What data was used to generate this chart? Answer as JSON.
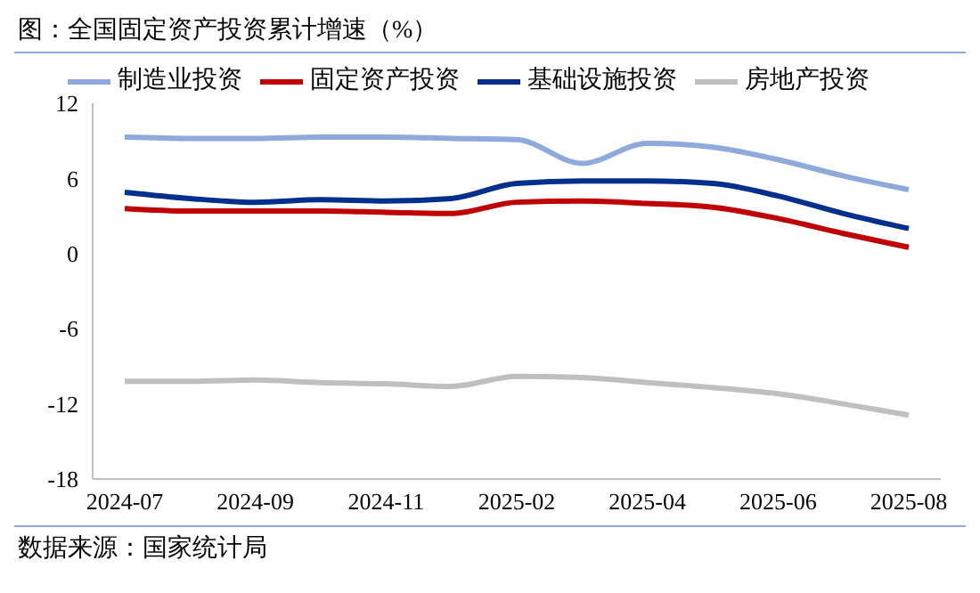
{
  "chart_data": {
    "type": "line",
    "title": "图：全国固定资产投资累计增速（%）",
    "annotations": [
      "数据来源：国家统计局"
    ],
    "categories": [
      "2024-07",
      null,
      "2024-09",
      null,
      "2024-11",
      null,
      "2025-02",
      null,
      "2025-04",
      null,
      "2025-06",
      null,
      "2025-08"
    ],
    "series": [
      {
        "name": "固定资产投资",
        "color": "#c00000",
        "values": [
          3.6,
          3.4,
          3.4,
          3.4,
          3.3,
          3.2,
          4.1,
          4.2,
          4.0,
          3.7,
          2.8,
          1.6,
          0.5
        ]
      },
      {
        "name": "基础设施投资",
        "color": "#002f8e",
        "values": [
          4.9,
          4.4,
          4.1,
          4.3,
          4.2,
          4.4,
          5.6,
          5.8,
          5.8,
          5.6,
          4.6,
          3.2,
          2.0
        ]
      },
      {
        "name": "房地产投资",
        "color": "#bfbfbf",
        "values": [
          -10.2,
          -10.2,
          -10.1,
          -10.3,
          -10.4,
          -10.6,
          -9.8,
          -9.9,
          -10.3,
          -10.7,
          -11.2,
          -12.0,
          -12.9
        ]
      },
      {
        "name": "制造业投资",
        "color": "#8ea9db",
        "values": [
          9.3,
          9.2,
          9.2,
          9.3,
          9.3,
          9.2,
          9.1,
          7.2,
          8.8,
          8.5,
          7.5,
          6.2,
          5.1
        ]
      }
    ],
    "ylim": [
      -18,
      12
    ],
    "yticks": [
      -18,
      -12,
      -6,
      0,
      6,
      12
    ],
    "grid": false,
    "legend": "top",
    "marker": "none",
    "line_style": "solid"
  }
}
